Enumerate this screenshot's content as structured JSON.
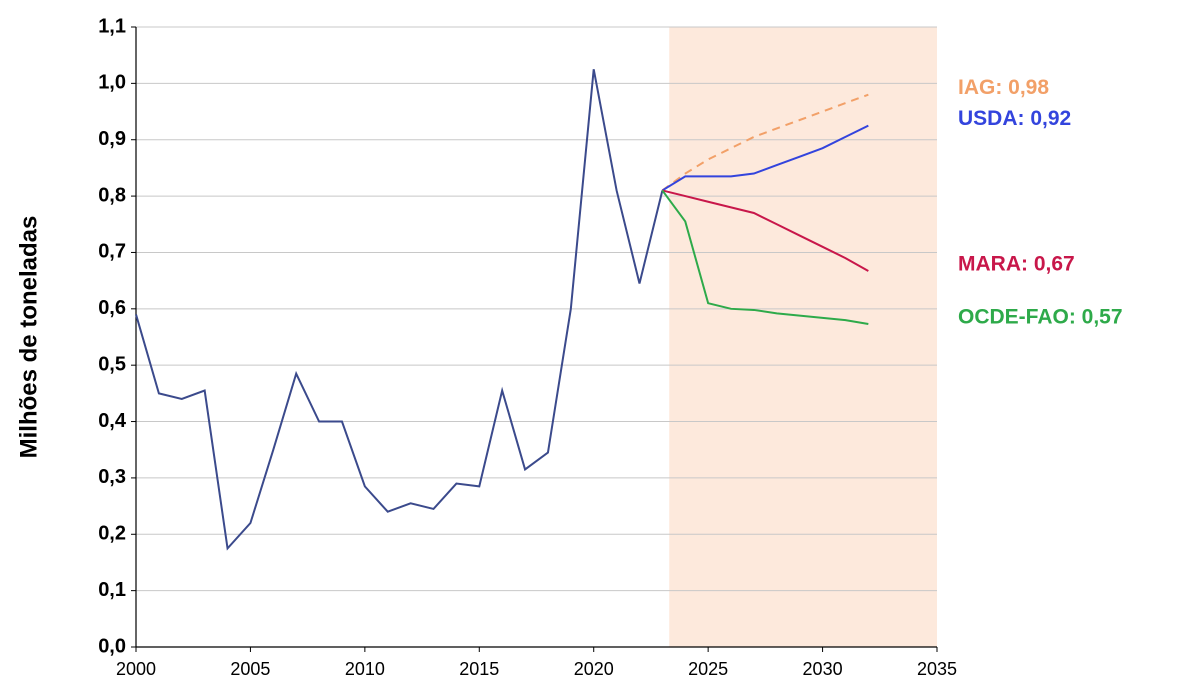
{
  "chart_data": {
    "type": "line",
    "y_label": "Milhões de toneladas",
    "xlim": [
      2000,
      2035
    ],
    "xticks": [
      2000,
      2005,
      2010,
      2015,
      2020,
      2025,
      2030,
      2035
    ],
    "ylim": [
      0,
      1.1
    ],
    "yticks": [
      {
        "value": 0,
        "label": "0,0"
      },
      {
        "value": 0.1,
        "label": "0,1"
      },
      {
        "value": 0.2,
        "label": "0,2"
      },
      {
        "value": 0.3,
        "label": "0,3"
      },
      {
        "value": 0.4,
        "label": "0,4"
      },
      {
        "value": 0.5,
        "label": "0,5"
      },
      {
        "value": 0.6,
        "label": "0,6"
      },
      {
        "value": 0.7,
        "label": "0,7"
      },
      {
        "value": 0.8,
        "label": "0,8"
      },
      {
        "value": 0.9,
        "label": "0,9"
      },
      {
        "value": 1.0,
        "label": "1,0"
      },
      {
        "value": 1.1,
        "label": "1,1"
      }
    ],
    "grid": true,
    "shaded_range": [
      2023.3,
      2035
    ],
    "shade_color": "#fde9dc",
    "series": [
      {
        "color": "#3b4a8c",
        "x": [
          2000,
          2001,
          2002,
          2003,
          2004,
          2005,
          2006,
          2007,
          2008,
          2009,
          2010,
          2011,
          2012,
          2013,
          2014,
          2015,
          2016,
          2017,
          2018,
          2019,
          2020,
          2021,
          2022,
          2023
        ],
        "values": [
          0.59,
          0.45,
          0.44,
          0.455,
          0.175,
          0.22,
          0.35,
          0.485,
          0.4,
          0.4,
          0.285,
          0.24,
          0.255,
          0.245,
          0.29,
          0.285,
          0.455,
          0.315,
          0.345,
          0.6,
          1.025,
          0.81,
          0.645,
          0.81
        ]
      },
      {
        "name": "IAG: 0,98",
        "color": "#f2a068",
        "dashed": true,
        "x": [
          2023,
          2024,
          2025,
          2026,
          2027,
          2028,
          2029,
          2030,
          2031,
          2032
        ],
        "values": [
          0.81,
          0.84,
          0.865,
          0.885,
          0.905,
          0.92,
          0.935,
          0.95,
          0.965,
          0.98
        ]
      },
      {
        "name": "USDA: 0,92",
        "color": "#3344dd",
        "x": [
          2023,
          2024,
          2025,
          2026,
          2027,
          2028,
          2029,
          2030,
          2031,
          2032
        ],
        "values": [
          0.81,
          0.835,
          0.835,
          0.835,
          0.84,
          0.855,
          0.87,
          0.885,
          0.905,
          0.925
        ]
      },
      {
        "name": "MARA: 0,67",
        "color": "#c8174a",
        "x": [
          2023,
          2024,
          2025,
          2026,
          2027,
          2028,
          2029,
          2030,
          2031,
          2032
        ],
        "values": [
          0.81,
          0.8,
          0.79,
          0.78,
          0.77,
          0.75,
          0.73,
          0.71,
          0.69,
          0.667
        ]
      },
      {
        "name": "OCDE-FAO: 0,57",
        "color": "#2eaa4a",
        "x": [
          2023,
          2024,
          2025,
          2026,
          2027,
          2028,
          2029,
          2030,
          2031,
          2032
        ],
        "values": [
          0.81,
          0.755,
          0.61,
          0.6,
          0.598,
          0.592,
          0.588,
          0.584,
          0.58,
          0.573
        ]
      }
    ]
  }
}
